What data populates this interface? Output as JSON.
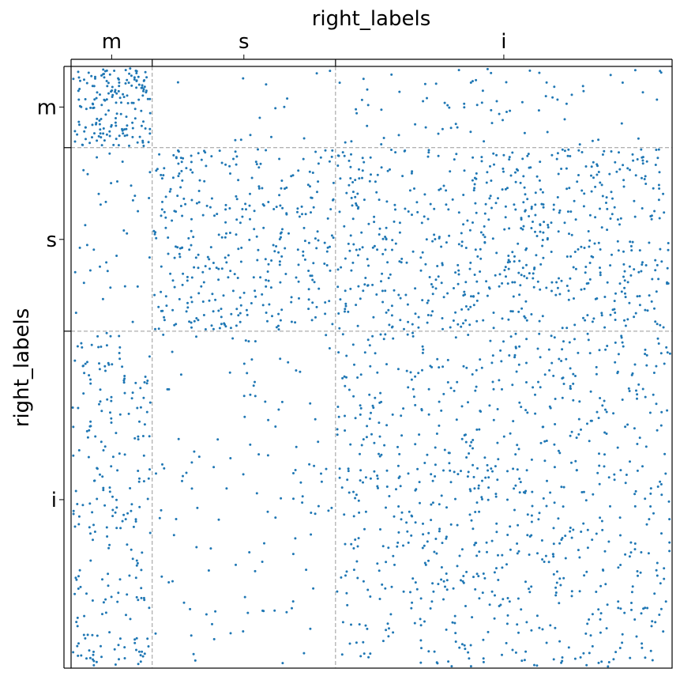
{
  "chart_data": {
    "type": "scatter",
    "subtype": "block adjacency matrix (spy plot)",
    "title": "",
    "xlabel": "right_labels",
    "ylabel": "right_labels",
    "x_axis_position": "top",
    "blocks": [
      {
        "label": "m",
        "size": 0.135
      },
      {
        "label": "s",
        "size": 0.305
      },
      {
        "label": "i",
        "size": 0.56
      }
    ],
    "block_divider_style": "dashed gray",
    "marker_color": "#1f77b4",
    "grid": false,
    "density_matrix": [
      [
        0.55,
        0.02,
        0.06
      ],
      [
        0.05,
        0.22,
        0.22
      ],
      [
        0.18,
        0.04,
        0.15
      ]
    ],
    "approx_point_count": 2500
  }
}
